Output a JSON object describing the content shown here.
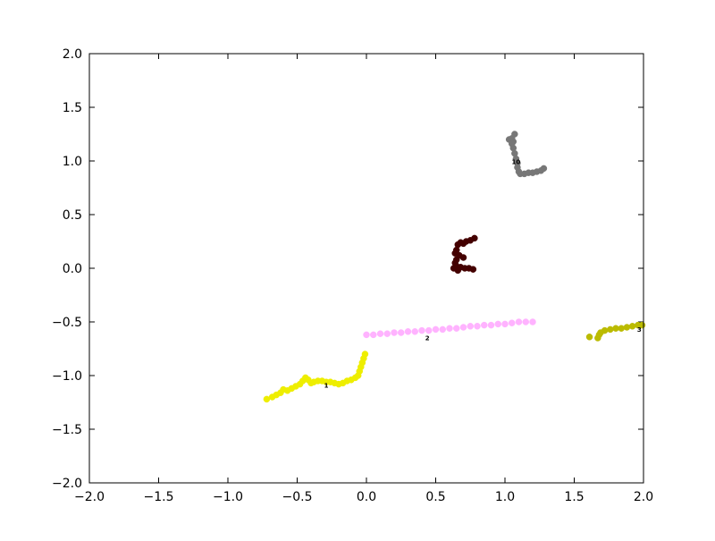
{
  "chart_data": {
    "type": "scatter",
    "title": "",
    "xlabel": "",
    "ylabel": "",
    "xlim": [
      -2.0,
      2.0
    ],
    "ylim": [
      -2.0,
      2.0
    ],
    "grid": false,
    "legend": "none",
    "x_ticks": [
      "−2.0",
      "−1.5",
      "−1.0",
      "−0.5",
      "0.0",
      "0.5",
      "1.0",
      "1.5",
      "2.0"
    ],
    "x_tick_values": [
      -2.0,
      -1.5,
      -1.0,
      -0.5,
      0.0,
      0.5,
      1.0,
      1.5,
      2.0
    ],
    "y_ticks": [
      "2.0",
      "1.5",
      "1.0",
      "0.5",
      "0.0",
      "−0.5",
      "−1.0",
      "−1.5",
      "−2.0"
    ],
    "y_tick_values": [
      2.0,
      1.5,
      1.0,
      0.5,
      0.0,
      -0.5,
      -1.0,
      -1.5,
      -2.0
    ],
    "series": [
      {
        "color": "#eeee00",
        "label": "1",
        "label_at": [
          -0.29,
          -1.09
        ],
        "points": [
          [
            -0.72,
            -1.22
          ],
          [
            -0.68,
            -1.2
          ],
          [
            -0.65,
            -1.18
          ],
          [
            -0.62,
            -1.16
          ],
          [
            -0.6,
            -1.13
          ],
          [
            -0.57,
            -1.14
          ],
          [
            -0.54,
            -1.12
          ],
          [
            -0.51,
            -1.1
          ],
          [
            -0.48,
            -1.08
          ],
          [
            -0.46,
            -1.05
          ],
          [
            -0.44,
            -1.02
          ],
          [
            -0.42,
            -1.04
          ],
          [
            -0.4,
            -1.07
          ],
          [
            -0.38,
            -1.06
          ],
          [
            -0.35,
            -1.05
          ],
          [
            -0.32,
            -1.05
          ],
          [
            -0.29,
            -1.06
          ],
          [
            -0.26,
            -1.06
          ],
          [
            -0.23,
            -1.07
          ],
          [
            -0.2,
            -1.08
          ],
          [
            -0.17,
            -1.07
          ],
          [
            -0.14,
            -1.05
          ],
          [
            -0.11,
            -1.04
          ],
          [
            -0.08,
            -1.02
          ],
          [
            -0.06,
            -1.0
          ],
          [
            -0.05,
            -0.96
          ],
          [
            -0.04,
            -0.92
          ],
          [
            -0.03,
            -0.88
          ],
          [
            -0.02,
            -0.84
          ],
          [
            -0.01,
            -0.8
          ]
        ]
      },
      {
        "color": "#ffb3ff",
        "label": "2",
        "label_at": [
          0.44,
          -0.65
        ],
        "points": [
          [
            0.0,
            -0.62
          ],
          [
            0.05,
            -0.62
          ],
          [
            0.1,
            -0.61
          ],
          [
            0.15,
            -0.61
          ],
          [
            0.2,
            -0.6
          ],
          [
            0.25,
            -0.6
          ],
          [
            0.3,
            -0.59
          ],
          [
            0.35,
            -0.59
          ],
          [
            0.4,
            -0.58
          ],
          [
            0.45,
            -0.58
          ],
          [
            0.5,
            -0.57
          ],
          [
            0.55,
            -0.57
          ],
          [
            0.6,
            -0.56
          ],
          [
            0.65,
            -0.56
          ],
          [
            0.7,
            -0.55
          ],
          [
            0.75,
            -0.54
          ],
          [
            0.8,
            -0.54
          ],
          [
            0.85,
            -0.53
          ],
          [
            0.9,
            -0.53
          ],
          [
            0.95,
            -0.52
          ],
          [
            1.0,
            -0.52
          ],
          [
            1.05,
            -0.51
          ],
          [
            1.1,
            -0.5
          ],
          [
            1.15,
            -0.5
          ],
          [
            1.2,
            -0.5
          ]
        ]
      },
      {
        "color": "#bbbb00",
        "label": "3",
        "label_at": [
          1.97,
          -0.57
        ],
        "points": [
          [
            1.61,
            -0.64
          ],
          [
            1.67,
            -0.65
          ],
          [
            1.68,
            -0.62
          ],
          [
            1.69,
            -0.6
          ],
          [
            1.72,
            -0.58
          ],
          [
            1.76,
            -0.57
          ],
          [
            1.8,
            -0.56
          ],
          [
            1.84,
            -0.56
          ],
          [
            1.88,
            -0.55
          ],
          [
            1.92,
            -0.54
          ],
          [
            1.96,
            -0.53
          ],
          [
            1.99,
            -0.53
          ]
        ]
      },
      {
        "color": "#440000",
        "label": "",
        "label_at": null,
        "points": [
          [
            0.66,
            0.22
          ],
          [
            0.68,
            0.24
          ],
          [
            0.7,
            0.23
          ],
          [
            0.72,
            0.25
          ],
          [
            0.75,
            0.26
          ],
          [
            0.78,
            0.28
          ],
          [
            0.65,
            0.17
          ],
          [
            0.64,
            0.14
          ],
          [
            0.67,
            0.12
          ],
          [
            0.7,
            0.1
          ],
          [
            0.65,
            0.08
          ],
          [
            0.64,
            0.05
          ],
          [
            0.65,
            0.02
          ],
          [
            0.68,
            0.01
          ],
          [
            0.71,
            0.0
          ],
          [
            0.74,
            0.0
          ],
          [
            0.77,
            -0.01
          ],
          [
            0.63,
            0.0
          ],
          [
            0.66,
            -0.02
          ]
        ]
      },
      {
        "color": "#777777",
        "label": "10",
        "label_at": [
          1.08,
          0.99
        ],
        "points": [
          [
            1.03,
            1.2
          ],
          [
            1.05,
            1.21
          ],
          [
            1.06,
            1.18
          ],
          [
            1.07,
            1.25
          ],
          [
            1.05,
            1.16
          ],
          [
            1.06,
            1.12
          ],
          [
            1.07,
            1.07
          ],
          [
            1.08,
            1.02
          ],
          [
            1.09,
            0.98
          ],
          [
            1.09,
            0.94
          ],
          [
            1.1,
            0.9
          ],
          [
            1.11,
            0.88
          ],
          [
            1.14,
            0.88
          ],
          [
            1.17,
            0.89
          ],
          [
            1.2,
            0.89
          ],
          [
            1.23,
            0.9
          ],
          [
            1.26,
            0.91
          ],
          [
            1.28,
            0.93
          ]
        ]
      }
    ]
  }
}
